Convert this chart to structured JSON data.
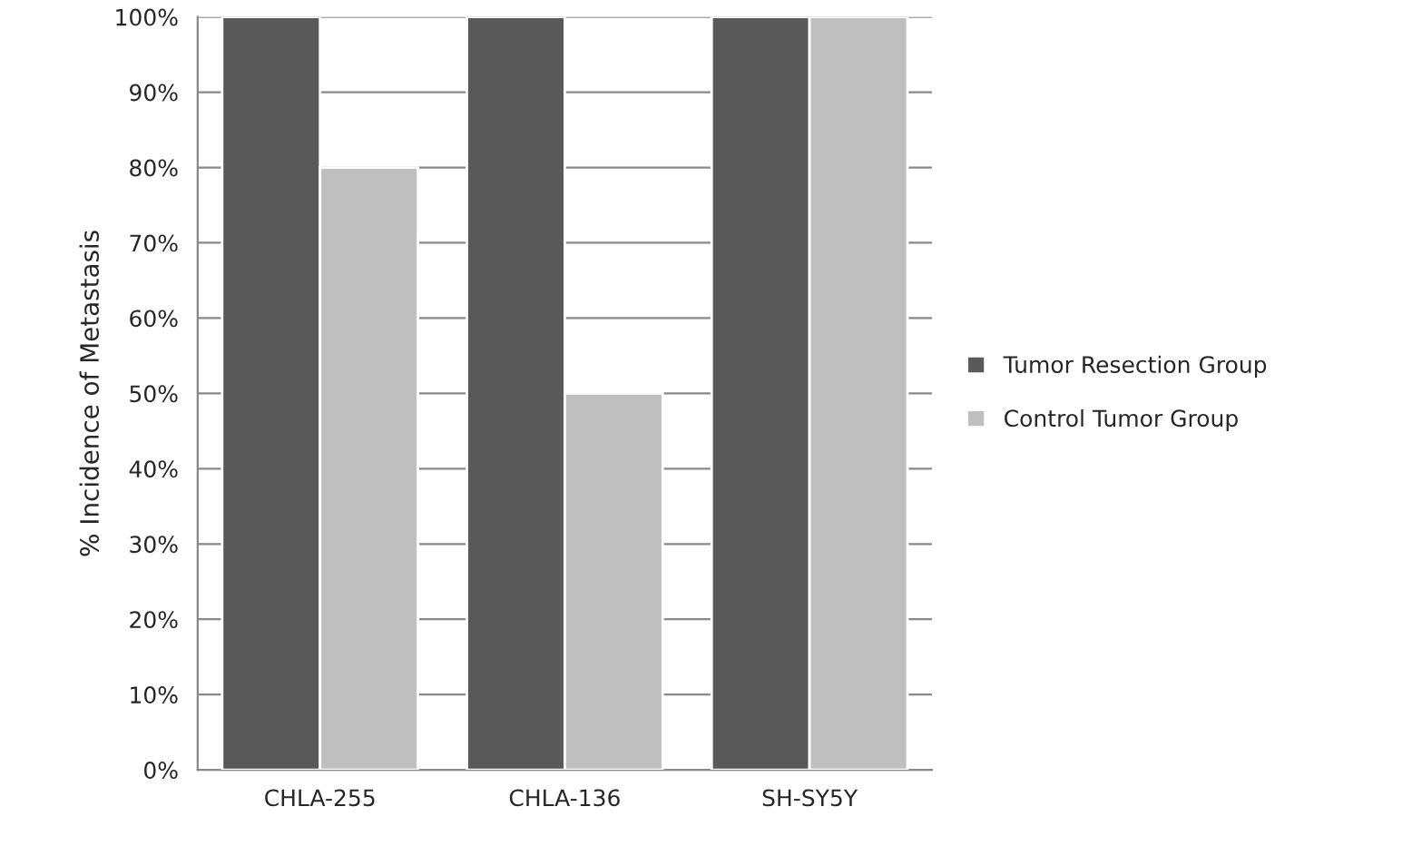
{
  "chart_data": {
    "type": "bar",
    "ylabel": "% Incidence of Metastasis",
    "categories": [
      "CHLA-255",
      "CHLA-136",
      "SH-SY5Y"
    ],
    "series": [
      {
        "name": "Tumor Resection Group",
        "color": "#595959",
        "values": [
          100,
          100,
          100
        ]
      },
      {
        "name": "Control Tumor Group",
        "color": "#bfbfbf",
        "values": [
          80,
          50,
          100
        ]
      }
    ],
    "ylim": [
      0,
      100
    ],
    "yticks": [
      {
        "value": 0,
        "label": "0%"
      },
      {
        "value": 10,
        "label": "10%"
      },
      {
        "value": 20,
        "label": "20%"
      },
      {
        "value": 30,
        "label": "30%"
      },
      {
        "value": 40,
        "label": "40%"
      },
      {
        "value": 50,
        "label": "50%"
      },
      {
        "value": 60,
        "label": "60%"
      },
      {
        "value": 70,
        "label": "70%"
      },
      {
        "value": 80,
        "label": "80%"
      },
      {
        "value": 90,
        "label": "90%"
      },
      {
        "value": 100,
        "label": "100%"
      }
    ],
    "grid": "y",
    "legend": "right"
  }
}
